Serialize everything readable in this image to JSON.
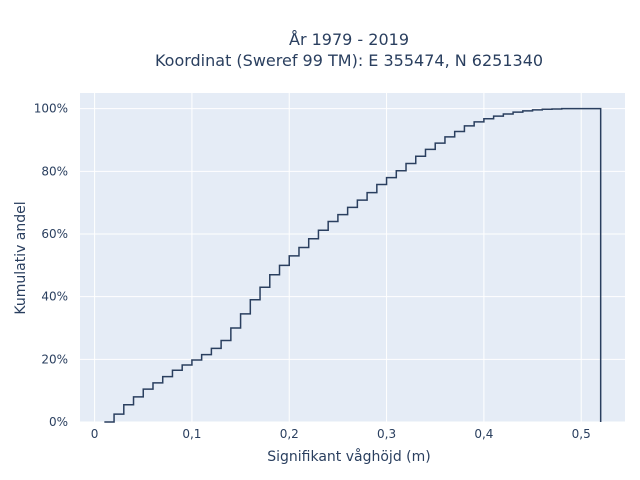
{
  "chart_data": {
    "type": "line",
    "subtype": "ecdf-step",
    "title_line1": "År 1979 - 2019",
    "title_line2": "Koordinat (Sweref 99 TM): E 355474, N 6251340",
    "xlabel": "Signifikant våghöjd (m)",
    "ylabel": "Kumulativ andel",
    "xlim": [
      -0.015,
      0.545
    ],
    "ylim": [
      0,
      1.05
    ],
    "x_ticks": [
      0,
      0.1,
      0.2,
      0.3,
      0.4,
      0.5
    ],
    "x_tick_labels": [
      "0",
      "0,1",
      "0,2",
      "0,3",
      "0,4",
      "0,5"
    ],
    "y_ticks": [
      0,
      0.2,
      0.4,
      0.6,
      0.8,
      1.0
    ],
    "y_tick_labels": [
      "0%",
      "20%",
      "40%",
      "60%",
      "80%",
      "100%"
    ],
    "grid": true,
    "plot_bg": "#e5ecf6",
    "line_color": "#2a3f5f",
    "step_edges": [
      0.01,
      0.02,
      0.03,
      0.04,
      0.05,
      0.06,
      0.07,
      0.08,
      0.09,
      0.1,
      0.11,
      0.12,
      0.13,
      0.14,
      0.15,
      0.16,
      0.17,
      0.18,
      0.19,
      0.2,
      0.21,
      0.22,
      0.23,
      0.24,
      0.25,
      0.26,
      0.27,
      0.28,
      0.29,
      0.3,
      0.31,
      0.32,
      0.33,
      0.34,
      0.35,
      0.36,
      0.37,
      0.38,
      0.39,
      0.4,
      0.41,
      0.42,
      0.43,
      0.44,
      0.45,
      0.46,
      0.47,
      0.48,
      0.49,
      0.5,
      0.52
    ],
    "cumulative_values": [
      0.0,
      0.025,
      0.055,
      0.08,
      0.105,
      0.125,
      0.145,
      0.165,
      0.182,
      0.198,
      0.215,
      0.235,
      0.26,
      0.3,
      0.345,
      0.39,
      0.43,
      0.47,
      0.5,
      0.53,
      0.557,
      0.585,
      0.612,
      0.64,
      0.662,
      0.685,
      0.708,
      0.732,
      0.758,
      0.78,
      0.802,
      0.825,
      0.848,
      0.87,
      0.89,
      0.91,
      0.927,
      0.945,
      0.958,
      0.968,
      0.976,
      0.983,
      0.989,
      0.993,
      0.996,
      0.998,
      0.999,
      1.0,
      1.0,
      1.0
    ]
  }
}
